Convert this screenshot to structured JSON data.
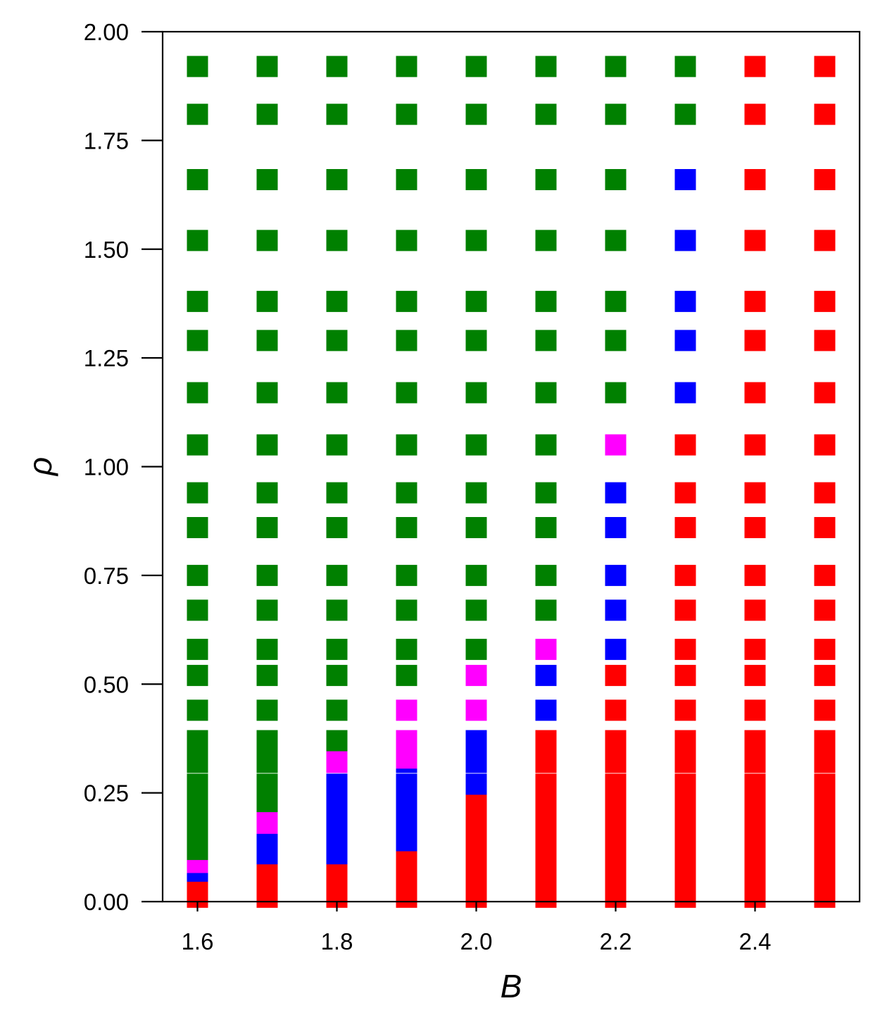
{
  "chart_data": {
    "type": "scatter",
    "marker": "square",
    "title": "",
    "xlabel": "B",
    "ylabel": "ρ",
    "xlim": [
      1.55,
      2.55
    ],
    "ylim": [
      0,
      2
    ],
    "x_ticks": [
      "1.6",
      "1.8",
      "2.0",
      "2.2",
      "2.4"
    ],
    "y_ticks": [
      "0.00",
      "0.25",
      "0.50",
      "0.75",
      "1.00",
      "1.25",
      "1.50",
      "1.75",
      "2.00"
    ],
    "colors": {
      "red": "#ff0000",
      "green": "#008000",
      "blue": "#0000ff",
      "magenta": "#ff00ff"
    },
    "x": [
      1.6,
      1.7,
      1.8,
      1.9,
      2.0,
      2.1,
      2.2,
      2.3,
      2.4,
      2.5
    ],
    "rho": [
      0.01,
      0.02,
      0.03,
      0.04,
      0.05,
      0.06,
      0.07,
      0.08,
      0.09,
      0.1,
      0.11,
      0.12,
      0.13,
      0.14,
      0.15,
      0.16,
      0.17,
      0.18,
      0.19,
      0.2,
      0.21,
      0.22,
      0.23,
      0.27,
      0.32,
      0.33,
      0.37,
      0.44,
      0.52,
      0.58,
      0.67,
      0.75,
      0.86,
      0.94,
      1.05,
      1.17,
      1.29,
      1.38,
      1.52,
      1.66,
      1.81,
      1.92
    ],
    "series": [
      {
        "name": "red",
        "color": "#ff0000"
      },
      {
        "name": "green",
        "color": "#008000"
      },
      {
        "name": "blue",
        "color": "#0000ff"
      },
      {
        "name": "magenta",
        "color": "#ff00ff"
      }
    ],
    "points": [
      "RRRRRRBBMMMGGGGGGGGGGGGGGGGGGGGGGGGGGGGGGG",
      "RRRRRRRRRRBBBBBBBMMMMMGGGGGGGGGGGGGGGGGGGG",
      "RRRRRRRRRRBBBBBBBBBBBBBBMMGGGGGGGGGGGGGGGG",
      "RRRRRRRRRRRRRBBBBBBBBBBBBMMMGGGGGGGGGGGGGG",
      "RRRRRRRRRRRRRRRRRRRRRRRBBBBMMGGGGGGGGGGGGG",
      "RRRRRRRRRRRRRRRRRRRRRRRRRRRBBMGGGGGGGGGGGG",
      "RRRRRRRRRRRRRRRRRRRRRRRRRRRRRBBBBBMGGGGGGG",
      "RRRRRRRRRRRRRRRRRRRRRRRRRRRRRRRRRRRBBBBBGG",
      "RRRRRRRRRRRRRRRRRRRRRRRRRRRRRRRRRRRRRRRRRR",
      "RRRRRRRRRRRRRRRRRRRRRRRRRRRRRRRRRRRRRRRRRR"
    ]
  }
}
